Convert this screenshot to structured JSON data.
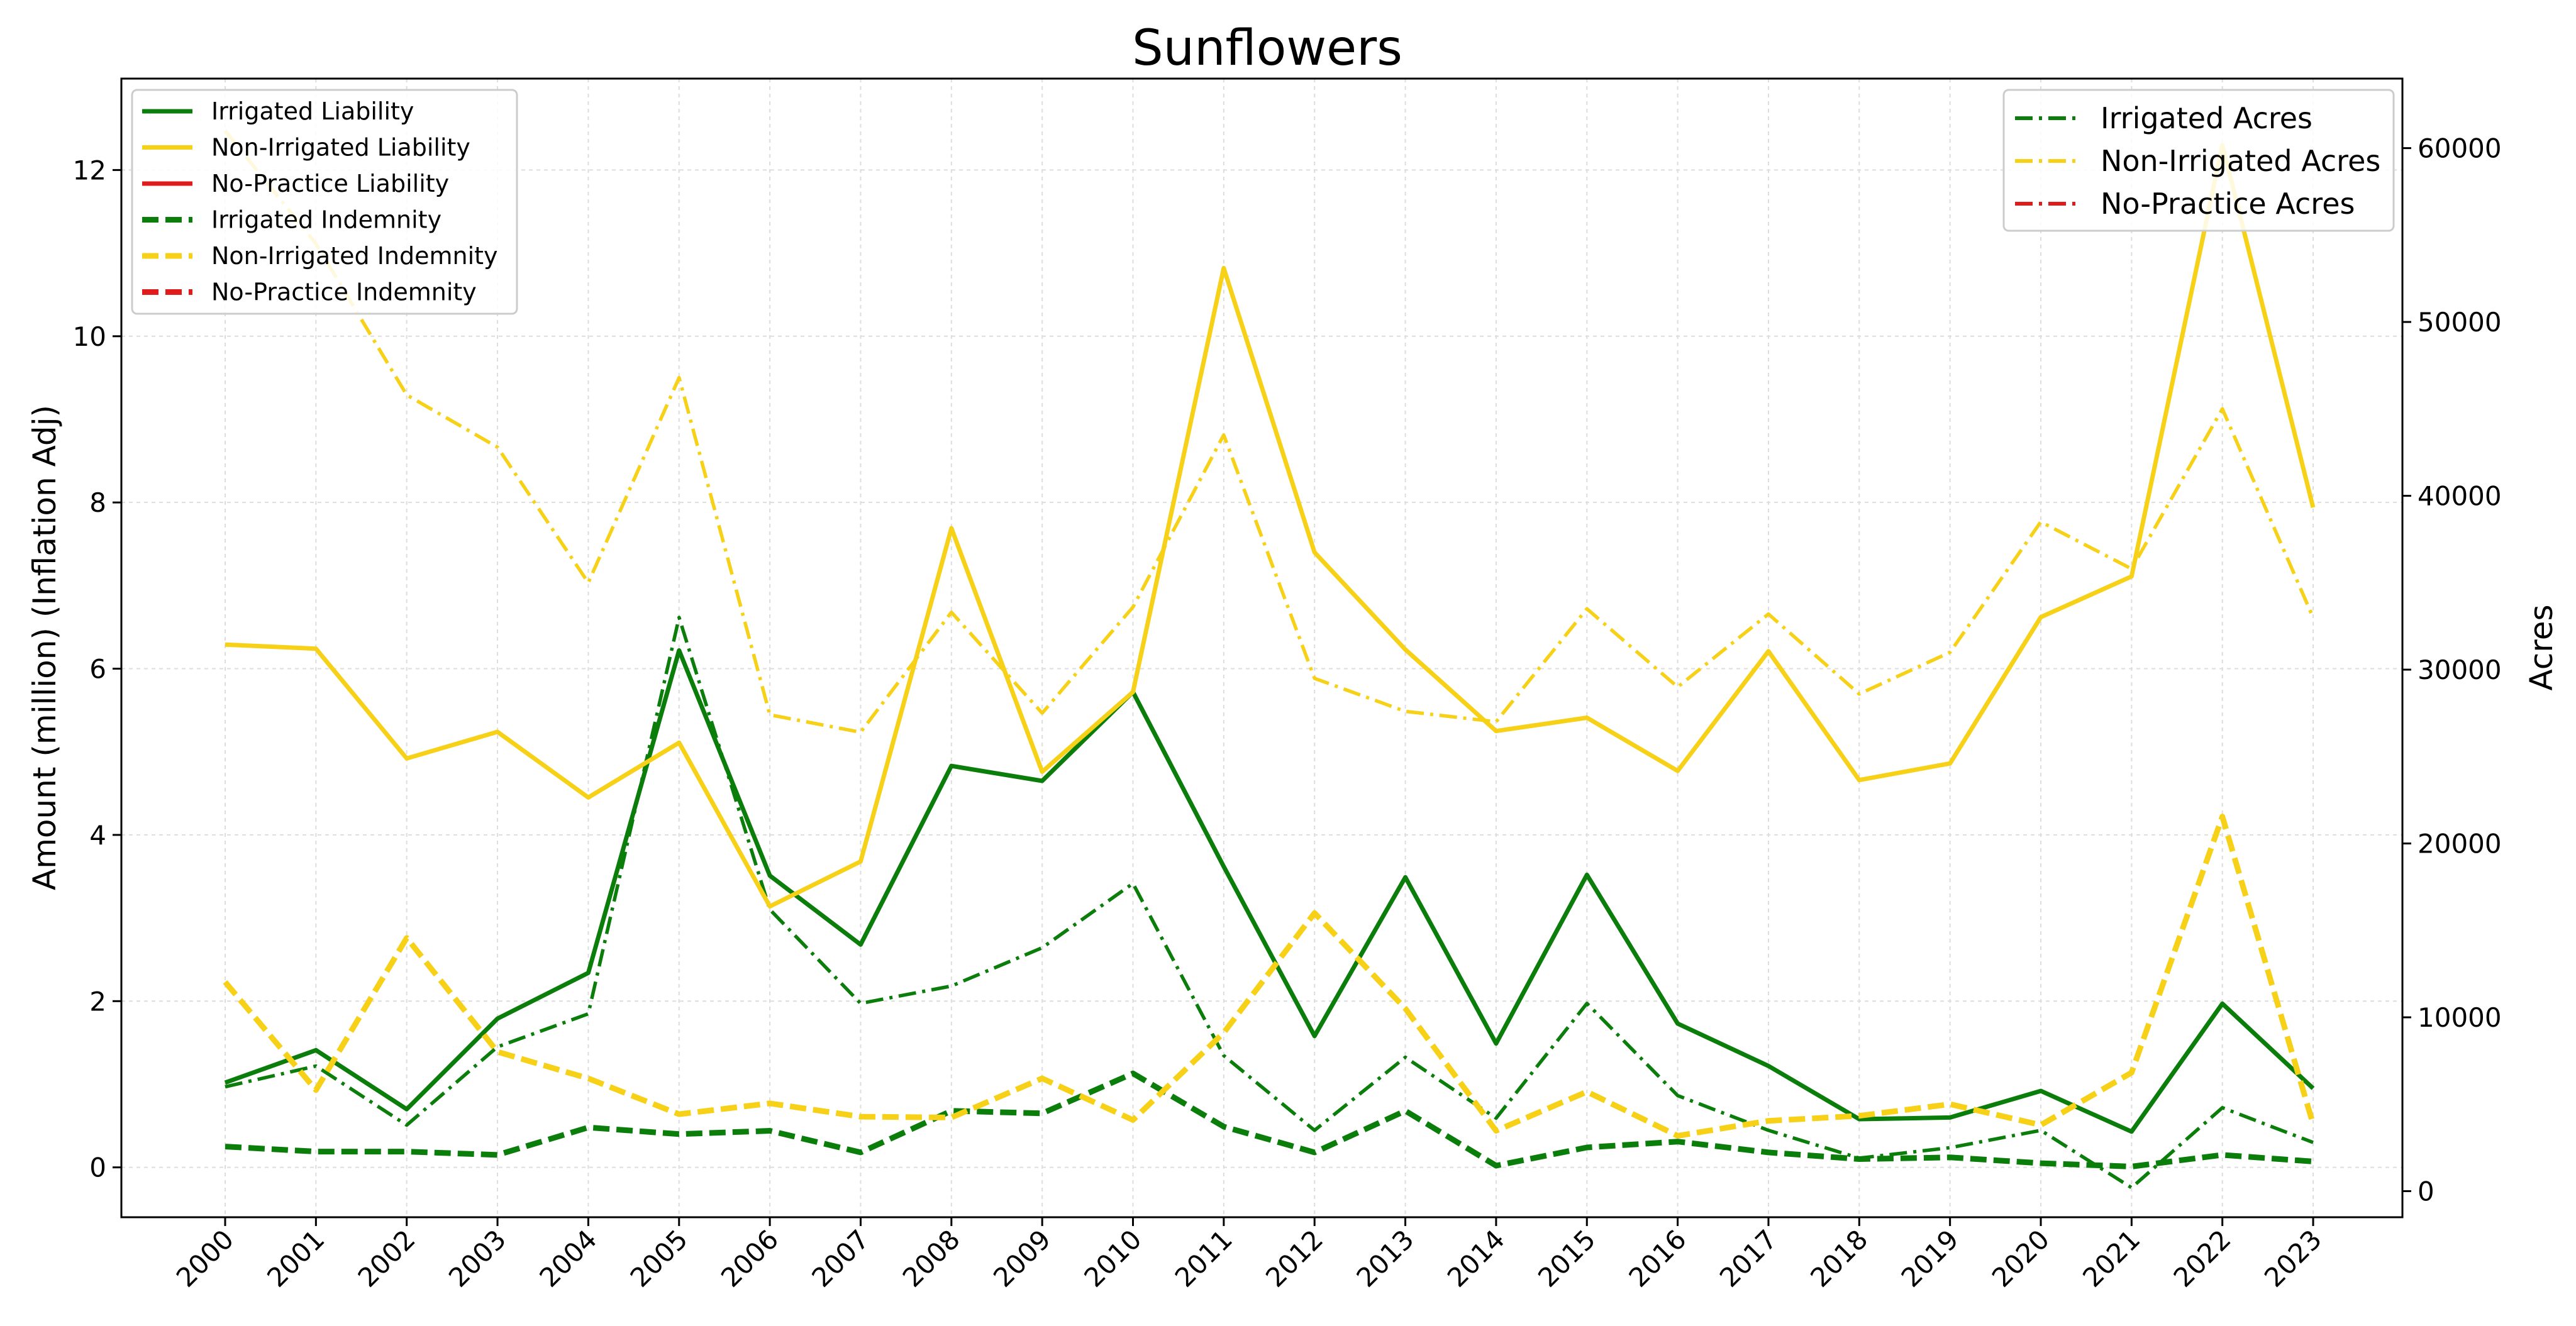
{
  "chart_data": {
    "type": "line",
    "title": "Sunflowers",
    "ylabel_left": "Amount (million) (Inflation Adj)",
    "ylabel_right": "Acres",
    "xlabel": "",
    "x": [
      2000,
      2001,
      2002,
      2003,
      2004,
      2005,
      2006,
      2007,
      2008,
      2009,
      2010,
      2011,
      2012,
      2013,
      2014,
      2015,
      2016,
      2017,
      2018,
      2019,
      2020,
      2021,
      2022,
      2023
    ],
    "x_tick_labels": [
      "2000",
      "2001",
      "2002",
      "2003",
      "2004",
      "2005",
      "2006",
      "2007",
      "2008",
      "2009",
      "2010",
      "2011",
      "2012",
      "2013",
      "2014",
      "2015",
      "2016",
      "2017",
      "2018",
      "2019",
      "2020",
      "2021",
      "2022",
      "2023"
    ],
    "ylim_left": [
      -0.6,
      13.1
    ],
    "yticks_left": [
      0,
      2,
      4,
      6,
      8,
      10,
      12
    ],
    "ytick_labels_left": [
      "0",
      "2",
      "4",
      "6",
      "8",
      "10",
      "12"
    ],
    "ylim_right": [
      -1500,
      64000
    ],
    "yticks_right": [
      0,
      10000,
      20000,
      30000,
      40000,
      50000,
      60000
    ],
    "ytick_labels_right": [
      "0",
      "10000",
      "20000",
      "30000",
      "40000",
      "50000",
      "60000"
    ],
    "grid": true,
    "legend_left_placement": "top-left",
    "legend_right_placement": "top-right",
    "colors": {
      "irrigated": "#0a7d0a",
      "non_irrigated": "#f7d117",
      "no_practice": "#e01b1b"
    },
    "series_left": [
      {
        "name": "Irrigated Liability",
        "color": "#0a7d0a",
        "style": "solid",
        "values": [
          1.02,
          1.41,
          0.7,
          1.79,
          2.34,
          6.22,
          3.51,
          2.68,
          4.83,
          4.65,
          5.72,
          3.62,
          1.58,
          3.49,
          1.49,
          3.52,
          1.73,
          1.22,
          0.58,
          0.6,
          0.92,
          0.43,
          1.97,
          0.95
        ]
      },
      {
        "name": "Non-Irrigated Liability",
        "color": "#f7d117",
        "style": "solid",
        "values": [
          6.29,
          6.24,
          4.92,
          5.24,
          4.45,
          5.11,
          3.14,
          3.68,
          7.69,
          4.76,
          5.72,
          10.82,
          7.4,
          6.23,
          5.25,
          5.41,
          4.77,
          6.21,
          4.66,
          4.86,
          6.62,
          7.11,
          12.3,
          7.94
        ]
      },
      {
        "name": "No-Practice Liability",
        "color": "#e01b1b",
        "style": "solid",
        "values": []
      },
      {
        "name": "Irrigated Indemnity",
        "color": "#0a7d0a",
        "style": "dashed",
        "values": [
          0.25,
          0.19,
          0.19,
          0.15,
          0.48,
          0.4,
          0.44,
          0.18,
          0.68,
          0.65,
          1.13,
          0.49,
          0.18,
          0.68,
          0.02,
          0.24,
          0.31,
          0.18,
          0.1,
          0.12,
          0.05,
          0.01,
          0.15,
          0.07
        ]
      },
      {
        "name": "Non-Irrigated Indemnity",
        "color": "#f7d117",
        "style": "dashed",
        "values": [
          2.23,
          0.93,
          2.76,
          1.39,
          1.07,
          0.64,
          0.77,
          0.61,
          0.6,
          1.07,
          0.57,
          1.62,
          3.06,
          1.91,
          0.44,
          0.91,
          0.38,
          0.56,
          0.62,
          0.76,
          0.51,
          1.14,
          4.22,
          0.52
        ]
      },
      {
        "name": "No-Practice Indemnity",
        "color": "#e01b1b",
        "style": "dashed",
        "values": []
      }
    ],
    "series_right": [
      {
        "name": "Irrigated Acres",
        "color": "#0a7d0a",
        "style": "dashdot",
        "values": [
          6000,
          7200,
          3800,
          8300,
          10200,
          33000,
          16200,
          10800,
          11800,
          14000,
          17700,
          7800,
          3500,
          7700,
          4200,
          10800,
          5500,
          3500,
          1900,
          2500,
          3500,
          200,
          4800,
          2800
        ]
      },
      {
        "name": "Non-Irrigated Acres",
        "color": "#f7d117",
        "style": "dashdot",
        "values": [
          61000,
          54500,
          45800,
          42800,
          35000,
          46800,
          27400,
          26400,
          33300,
          27500,
          33600,
          43500,
          29500,
          27600,
          27000,
          33500,
          29000,
          33200,
          28600,
          31000,
          38500,
          35800,
          45000,
          33000
        ]
      },
      {
        "name": "No-Practice Acres",
        "color": "#e01b1b",
        "style": "dashdot",
        "values": []
      }
    ]
  }
}
